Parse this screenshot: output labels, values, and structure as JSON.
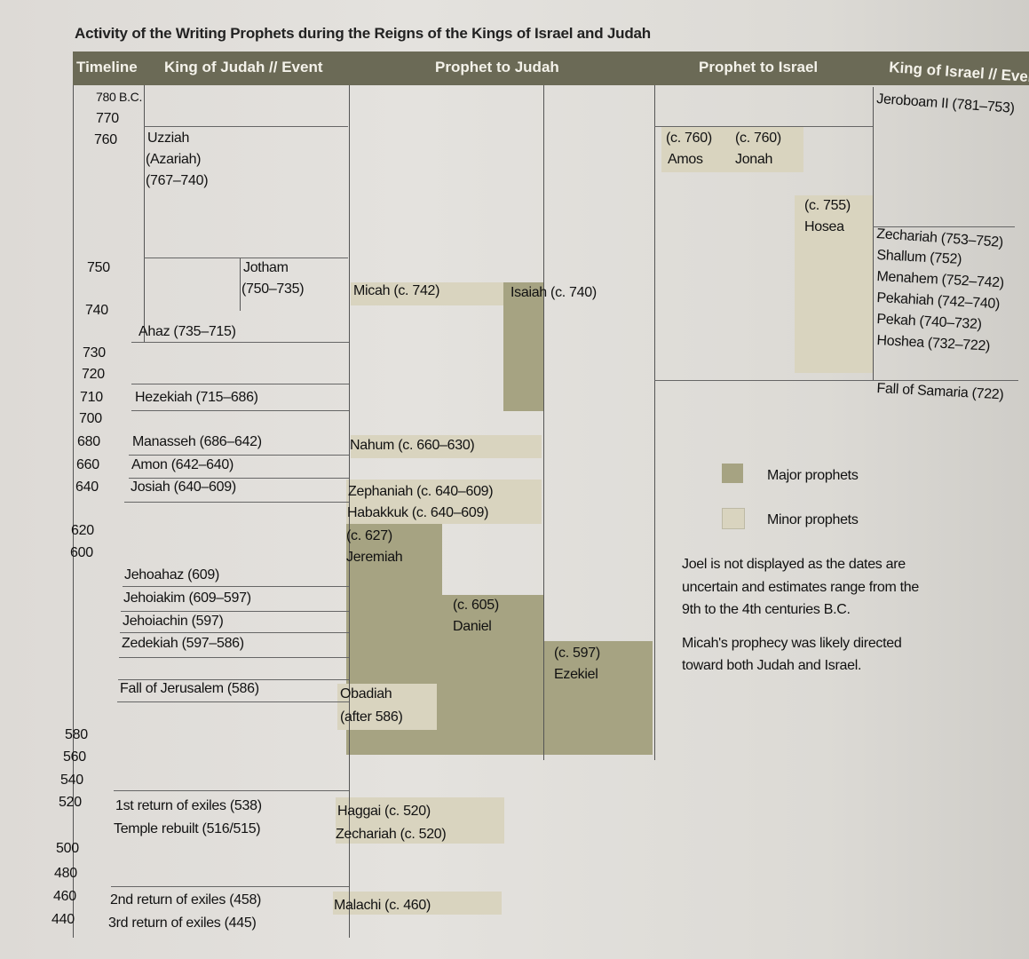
{
  "title": "Activity of the Writing Prophets during the Reigns of the Kings of Israel and Judah",
  "header": {
    "timeline": "Timeline",
    "judah_king": "King of Judah // Event",
    "judah_prophet": "Prophet to Judah",
    "israel_prophet": "Prophet to Israel",
    "israel_king": "King of Israel // Event"
  },
  "timeline": [
    "780 B.C.",
    "770",
    "760",
    "750",
    "740",
    "730",
    "720",
    "710",
    "700",
    "680",
    "660",
    "640",
    "620",
    "600",
    "580",
    "560",
    "540",
    "520",
    "500",
    "480",
    "460",
    "440"
  ],
  "judah_kings": [
    "Uzziah",
    "(Azariah)",
    "(767–740)",
    "Jotham",
    "(750–735)",
    "Ahaz (735–715)",
    "Hezekiah (715–686)",
    "Manasseh (686–642)",
    "Amon (642–640)",
    "Josiah (640–609)",
    "Jehoahaz (609)",
    "Jehoiakim (609–597)",
    "Jehoiachin (597)",
    "Zedekiah (597–586)",
    "Fall of Jerusalem (586)",
    "1st return of exiles (538)",
    "Temple rebuilt (516/515)",
    "2nd return of exiles (458)",
    "3rd return of exiles (445)"
  ],
  "judah_prophets": [
    "Micah (c. 742)",
    "Isaiah (c. 740)",
    "Nahum (c. 660–630)",
    "Zephaniah (c. 640–609)",
    "Habakkuk (c. 640–609)",
    "(c. 627)",
    "Jeremiah",
    "(c. 605)",
    "Daniel",
    "(c. 597)",
    "Ezekiel",
    "Obadiah",
    "(after 586)",
    "Haggai (c. 520)",
    "Zechariah (c. 520)",
    "Malachi (c. 460)"
  ],
  "israel_prophets": [
    "(c. 760)",
    "Amos",
    "(c. 760)",
    "Jonah",
    "(c. 755)",
    "Hosea"
  ],
  "israel_kings": [
    "Jeroboam II (781–753)",
    "Zechariah (753–752)",
    "Shallum (752)",
    "Menahem (752–742)",
    "Pekahiah (742–740)",
    "Pekah (740–732)",
    "Hoshea (732–722)",
    "Fall of Samaria (722)"
  ],
  "legend": {
    "major": "Major prophets",
    "minor": "Minor prophets"
  },
  "notes": [
    "Joel is not displayed as the dates are",
    "uncertain and estimates range from the",
    "9th to the 4th centuries B.C.",
    "Micah's prophecy was likely directed",
    "toward both Judah and Israel."
  ],
  "colors": {
    "header": "#6b6a56",
    "major": "#a6a382",
    "minor": "#d9d4bf"
  }
}
